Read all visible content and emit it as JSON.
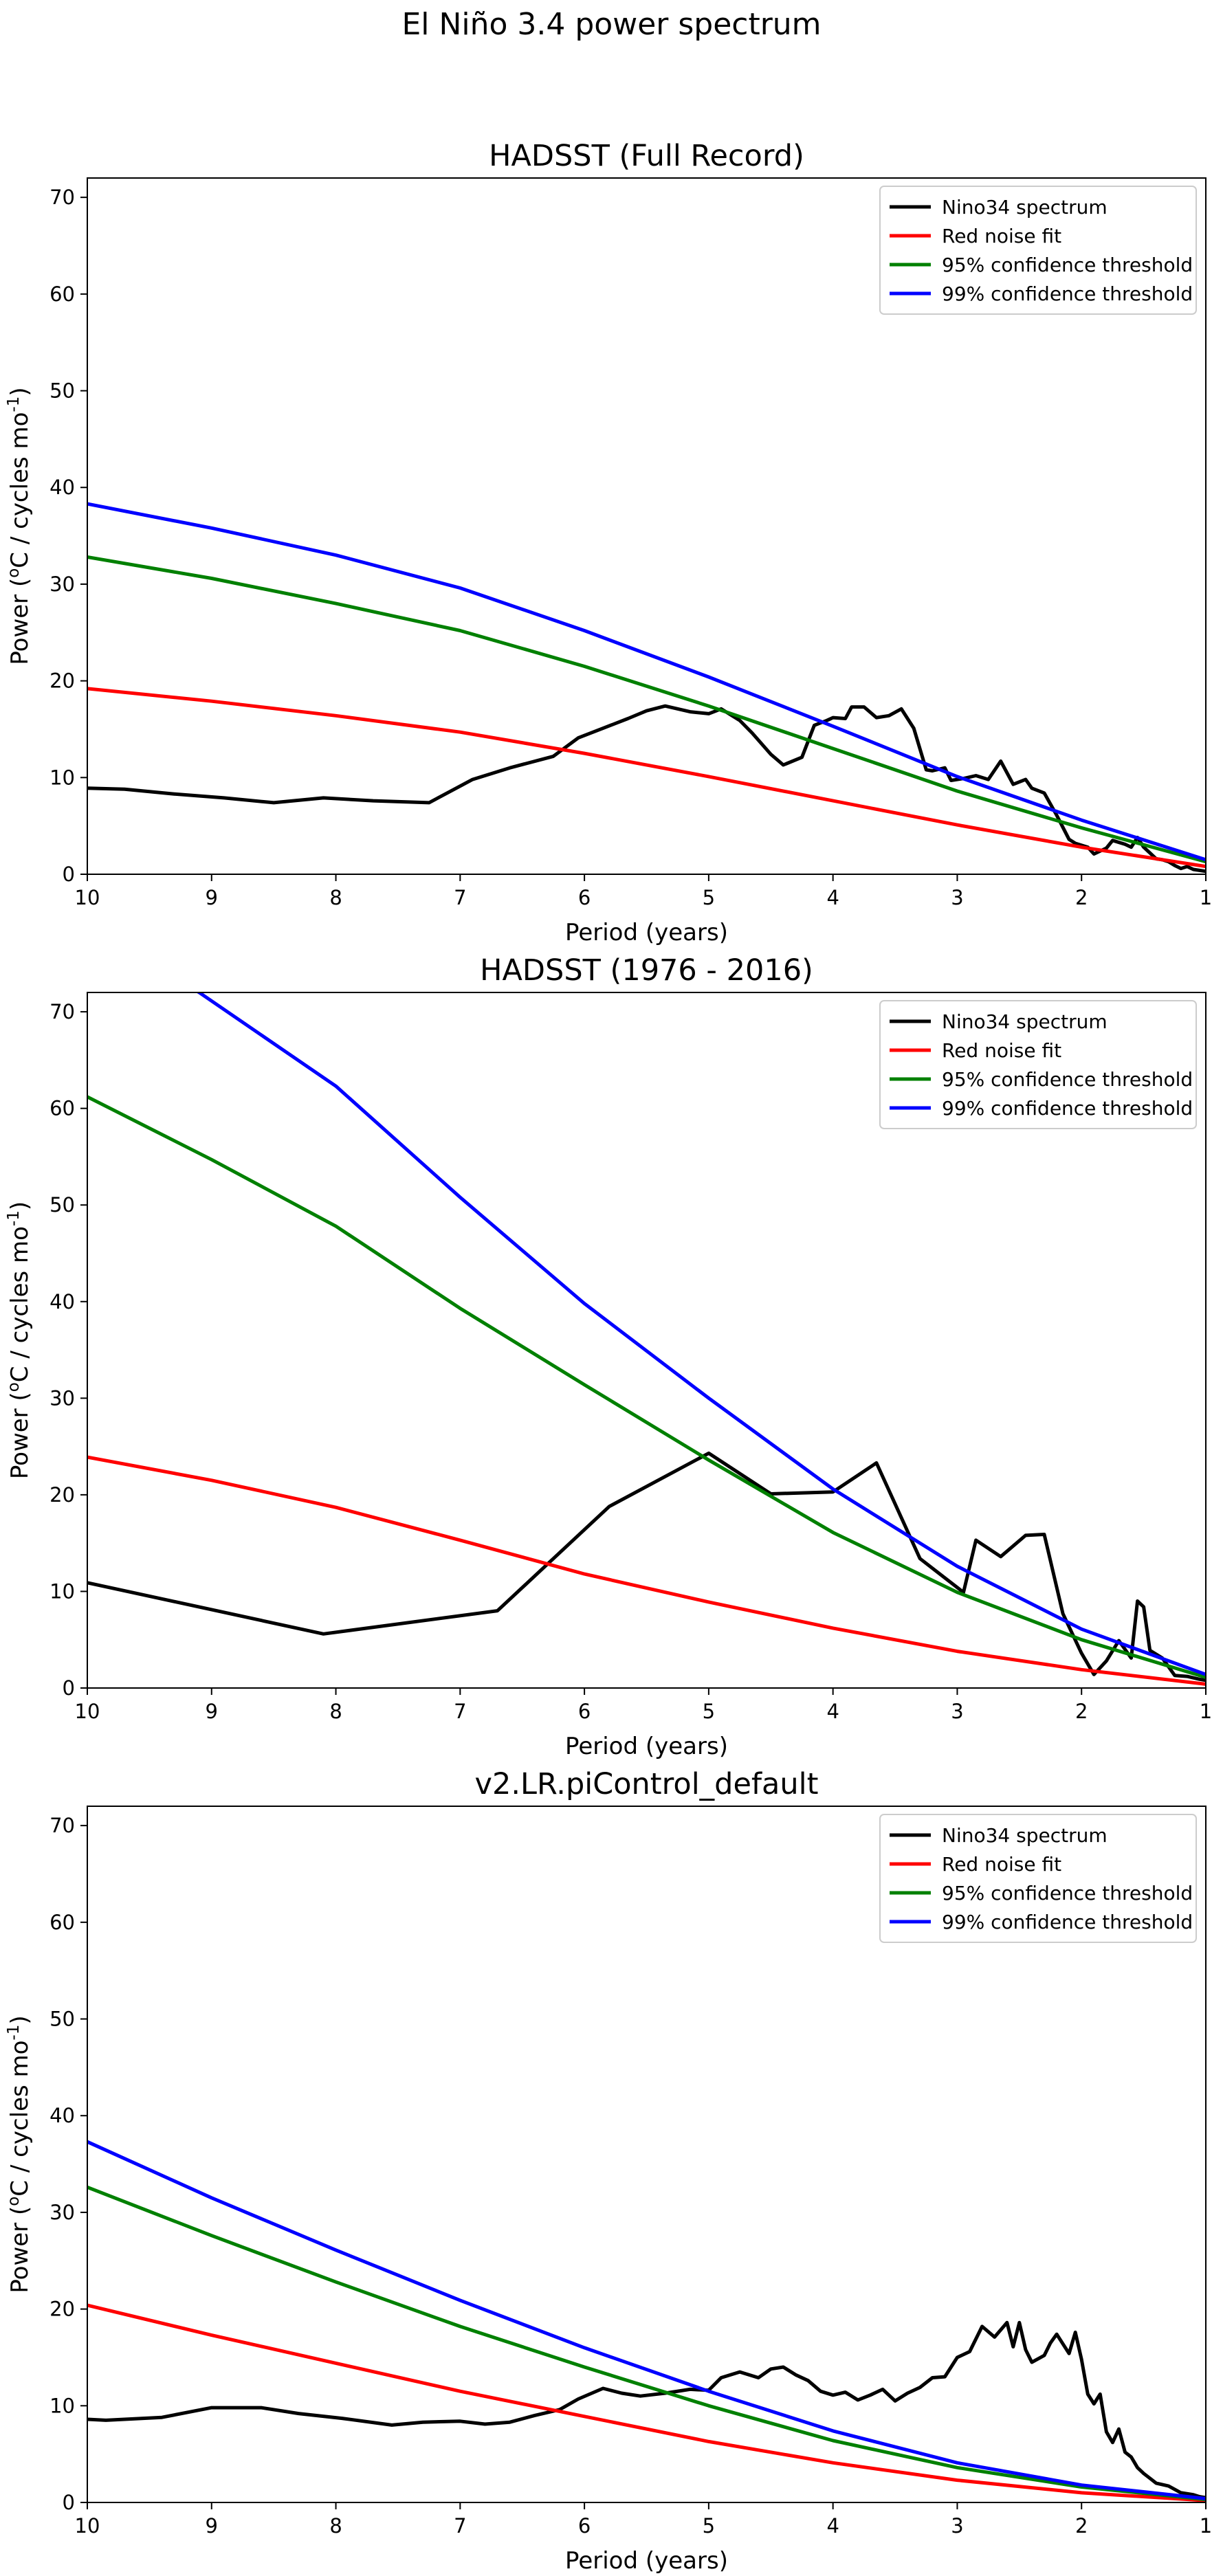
{
  "figure": {
    "title": "El Niño 3.4 power spectrum"
  },
  "legend_labels": [
    "Nino34 spectrum",
    "Red noise fit",
    "95% confidence threshold",
    "99% confidence threshold"
  ],
  "colors": {
    "nino34": "#000000",
    "red_noise": "#ff0000",
    "conf95": "#008000",
    "conf99": "#0000ff"
  },
  "chart_data": [
    {
      "type": "line",
      "title": "HADSST (Full Record)",
      "xlabel": "Period (years)",
      "ylabel": "Power (oC / cycles mo-1)",
      "xlim": [
        10,
        1
      ],
      "ylim": [
        0,
        72
      ],
      "xticks": [
        10,
        9,
        8,
        7,
        6,
        5,
        4,
        3,
        2,
        1
      ],
      "yticks": [
        0,
        10,
        20,
        30,
        40,
        50,
        60,
        70
      ],
      "legend_position": "top-right",
      "grid": false,
      "series": [
        {
          "name": "Nino34 spectrum",
          "color": "#000000",
          "x": [
            10,
            9.7,
            9.3,
            8.9,
            8.5,
            8.1,
            7.7,
            7.25,
            6.9,
            6.6,
            6.25,
            6.05,
            5.85,
            5.65,
            5.5,
            5.35,
            5.15,
            5.0,
            4.9,
            4.75,
            4.65,
            4.5,
            4.4,
            4.25,
            4.15,
            4.05,
            4.0,
            3.9,
            3.85,
            3.75,
            3.65,
            3.55,
            3.45,
            3.35,
            3.25,
            3.2,
            3.1,
            3.05,
            2.95,
            2.85,
            2.75,
            2.65,
            2.55,
            2.45,
            2.4,
            2.3,
            2.2,
            2.1,
            2.05,
            1.95,
            1.9,
            1.8,
            1.75,
            1.65,
            1.6,
            1.55,
            1.5,
            1.45,
            1.4,
            1.35,
            1.3,
            1.25,
            1.2,
            1.15,
            1.1,
            1.05,
            1.0
          ],
          "y": [
            8.9,
            8.8,
            8.3,
            7.9,
            7.4,
            7.9,
            7.6,
            7.4,
            9.8,
            11.0,
            12.2,
            14.1,
            15.1,
            16.1,
            16.9,
            17.4,
            16.8,
            16.6,
            17.1,
            15.9,
            14.6,
            12.4,
            11.3,
            12.1,
            15.4,
            15.9,
            16.2,
            16.1,
            17.3,
            17.3,
            16.2,
            16.4,
            17.1,
            15.1,
            10.8,
            10.7,
            11.0,
            9.7,
            9.9,
            10.2,
            9.8,
            11.7,
            9.3,
            9.8,
            8.9,
            8.4,
            6.1,
            3.6,
            3.2,
            2.8,
            2.1,
            2.7,
            3.5,
            3.1,
            2.8,
            3.8,
            2.8,
            2.2,
            1.6,
            1.5,
            1.3,
            0.9,
            0.6,
            0.8,
            0.5,
            0.4,
            0.3
          ]
        },
        {
          "name": "Red noise fit",
          "color": "#ff0000",
          "x": [
            10,
            9,
            8,
            7,
            6,
            5,
            4,
            3,
            2,
            1
          ],
          "y": [
            19.2,
            17.9,
            16.4,
            14.7,
            12.5,
            10.1,
            7.6,
            5.1,
            2.8,
            0.8
          ]
        },
        {
          "name": "95% confidence threshold",
          "color": "#008000",
          "x": [
            10,
            9,
            8,
            7,
            6,
            5,
            4,
            3,
            2,
            1
          ],
          "y": [
            32.8,
            30.6,
            28.0,
            25.2,
            21.5,
            17.4,
            13.0,
            8.6,
            4.8,
            1.3
          ]
        },
        {
          "name": "99% confidence threshold",
          "color": "#0000ff",
          "x": [
            10,
            9,
            8,
            7,
            6,
            5,
            4,
            3,
            2,
            1
          ],
          "y": [
            38.3,
            35.8,
            33.0,
            29.6,
            25.2,
            20.4,
            15.3,
            10.1,
            5.6,
            1.5
          ]
        }
      ]
    },
    {
      "type": "line",
      "title": "HADSST (1976 - 2016)",
      "xlabel": "Period (years)",
      "ylabel": "Power (oC / cycles mo-1)",
      "xlim": [
        10,
        1
      ],
      "ylim": [
        0,
        72
      ],
      "xticks": [
        10,
        9,
        8,
        7,
        6,
        5,
        4,
        3,
        2,
        1
      ],
      "yticks": [
        0,
        10,
        20,
        30,
        40,
        50,
        60,
        70
      ],
      "legend_position": "top-right",
      "grid": false,
      "series": [
        {
          "name": "Nino34 spectrum",
          "color": "#000000",
          "x": [
            10,
            8.1,
            6.7,
            5.8,
            5.0,
            4.5,
            4.0,
            3.65,
            3.3,
            2.95,
            2.85,
            2.65,
            2.45,
            2.3,
            2.15,
            2.0,
            1.9,
            1.8,
            1.7,
            1.6,
            1.55,
            1.5,
            1.45,
            1.35,
            1.25,
            1.15,
            1.05,
            1.0
          ],
          "y": [
            10.9,
            5.6,
            8.0,
            18.8,
            24.3,
            20.1,
            20.3,
            23.3,
            13.4,
            9.9,
            15.3,
            13.6,
            15.8,
            15.9,
            7.7,
            3.6,
            1.4,
            2.8,
            4.9,
            3.1,
            9.0,
            8.4,
            3.9,
            3.1,
            1.3,
            1.2,
            0.9,
            0.8
          ]
        },
        {
          "name": "Red noise fit",
          "color": "#ff0000",
          "x": [
            10,
            9,
            8,
            7,
            6,
            5,
            4,
            3,
            2,
            1
          ],
          "y": [
            23.9,
            21.5,
            18.7,
            15.3,
            11.8,
            8.9,
            6.2,
            3.8,
            1.9,
            0.4
          ]
        },
        {
          "name": "95% confidence threshold",
          "color": "#008000",
          "x": [
            10,
            9,
            8,
            7,
            6,
            5,
            4,
            3,
            2,
            1
          ],
          "y": [
            61.2,
            54.7,
            47.8,
            39.3,
            31.4,
            23.6,
            16.1,
            9.9,
            5.0,
            1.1
          ]
        },
        {
          "name": "99% confidence threshold",
          "color": "#0000ff",
          "x": [
            10,
            9.1,
            8,
            7,
            6,
            5,
            4,
            3,
            2,
            1
          ],
          "y": [
            79.0,
            72.0,
            62.3,
            50.8,
            39.8,
            30.0,
            20.6,
            12.6,
            6.1,
            1.4
          ]
        }
      ]
    },
    {
      "type": "line",
      "title": "v2.LR.piControl_default",
      "xlabel": "Period (years)",
      "ylabel": "Power (oC / cycles mo-1)",
      "xlim": [
        10,
        1
      ],
      "ylim": [
        0,
        72
      ],
      "xticks": [
        10,
        9,
        8,
        7,
        6,
        5,
        4,
        3,
        2,
        1
      ],
      "yticks": [
        0,
        10,
        20,
        30,
        40,
        50,
        60,
        70
      ],
      "legend_position": "top-right",
      "grid": false,
      "series": [
        {
          "name": "Nino34 spectrum",
          "color": "#000000",
          "x": [
            10,
            9.85,
            9.4,
            9.0,
            8.6,
            8.3,
            7.95,
            7.55,
            7.3,
            7.0,
            6.8,
            6.6,
            6.4,
            6.2,
            6.05,
            5.85,
            5.7,
            5.55,
            5.35,
            5.15,
            5.0,
            4.9,
            4.75,
            4.6,
            4.5,
            4.4,
            4.3,
            4.2,
            4.1,
            4.0,
            3.9,
            3.8,
            3.7,
            3.6,
            3.5,
            3.4,
            3.3,
            3.2,
            3.1,
            3.0,
            2.9,
            2.8,
            2.7,
            2.6,
            2.55,
            2.5,
            2.45,
            2.4,
            2.3,
            2.25,
            2.2,
            2.1,
            2.05,
            2.0,
            1.95,
            1.9,
            1.85,
            1.8,
            1.75,
            1.7,
            1.65,
            1.6,
            1.55,
            1.5,
            1.45,
            1.4,
            1.3,
            1.2,
            1.1,
            1.05,
            1.0
          ],
          "y": [
            8.6,
            8.5,
            8.8,
            9.8,
            9.8,
            9.2,
            8.7,
            8.0,
            8.3,
            8.4,
            8.1,
            8.3,
            9.0,
            9.6,
            10.7,
            11.8,
            11.3,
            11.0,
            11.3,
            11.7,
            11.6,
            12.9,
            13.5,
            12.9,
            13.8,
            14.0,
            13.2,
            12.6,
            11.5,
            11.1,
            11.4,
            10.6,
            11.1,
            11.7,
            10.5,
            11.3,
            11.9,
            12.9,
            13.0,
            15.0,
            15.6,
            18.2,
            17.1,
            18.6,
            16.1,
            18.6,
            15.8,
            14.5,
            15.2,
            16.5,
            17.4,
            15.4,
            17.6,
            14.8,
            11.2,
            10.2,
            11.2,
            7.3,
            6.2,
            7.6,
            5.2,
            4.7,
            3.6,
            3.0,
            2.5,
            2.0,
            1.7,
            1.0,
            0.8,
            0.6,
            0.5
          ]
        },
        {
          "name": "Red noise fit",
          "color": "#ff0000",
          "x": [
            10,
            9,
            8,
            7,
            6,
            5,
            4,
            3,
            2,
            1
          ],
          "y": [
            20.4,
            17.3,
            14.4,
            11.5,
            8.9,
            6.3,
            4.1,
            2.3,
            1.0,
            0.2
          ]
        },
        {
          "name": "95% confidence threshold",
          "color": "#008000",
          "x": [
            10,
            9,
            8,
            7,
            6,
            5,
            4,
            3,
            2,
            1
          ],
          "y": [
            32.6,
            27.6,
            22.8,
            18.2,
            14.0,
            10.0,
            6.4,
            3.6,
            1.6,
            0.3
          ]
        },
        {
          "name": "99% confidence threshold",
          "color": "#0000ff",
          "x": [
            10,
            9,
            8,
            7,
            6,
            5,
            4,
            3,
            2,
            1
          ],
          "y": [
            37.3,
            31.5,
            26.1,
            20.9,
            16.0,
            11.5,
            7.4,
            4.1,
            1.8,
            0.4
          ]
        }
      ]
    }
  ]
}
